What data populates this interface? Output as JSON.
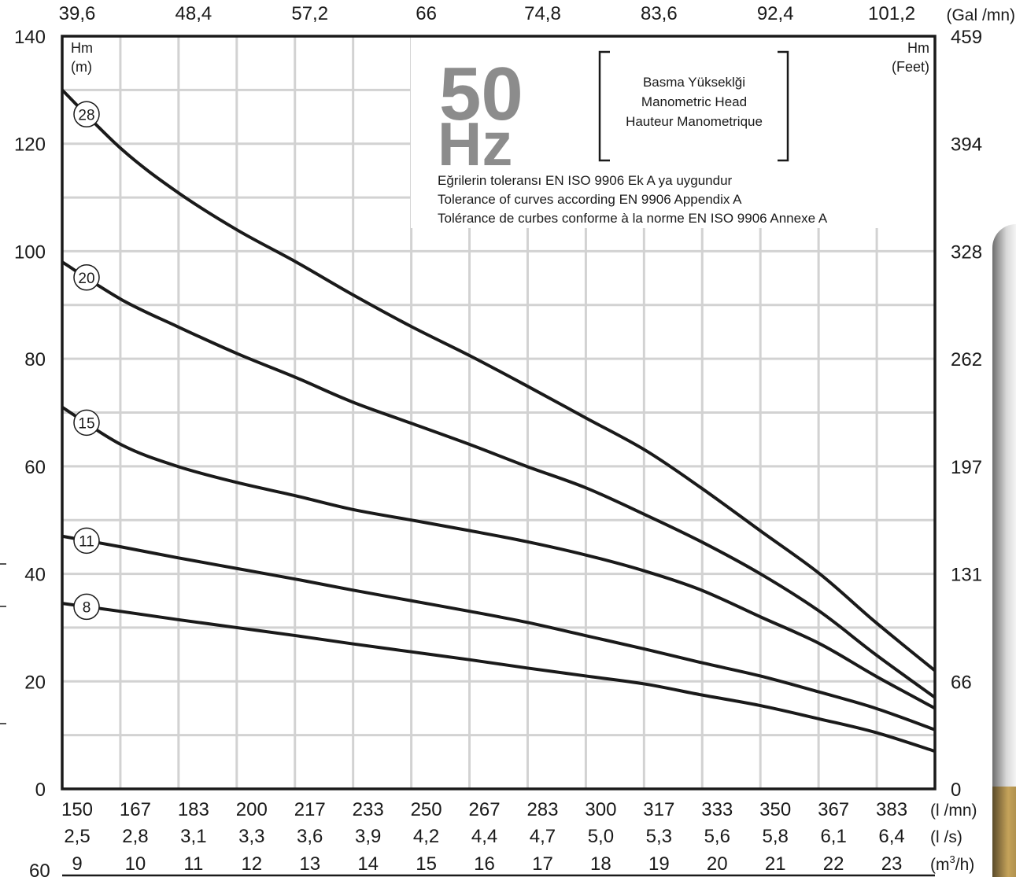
{
  "chart_data": {
    "type": "line",
    "title": "50 Hz",
    "title_line1": "50",
    "title_line2": "Hz",
    "y_left_label_top": "Hm",
    "y_left_label_unit": "(m)",
    "y_right_label_top": "Hm",
    "y_right_label_unit": "(Feet)",
    "ylim": [
      0,
      140
    ],
    "xlim": [
      150,
      400
    ],
    "x_unit_lmn": "(l /mn)",
    "x_unit_ls": "(l /s)",
    "x_unit_m3h_prefix": "(m",
    "x_unit_m3h_sup": "3",
    "x_unit_m3h_suffix": "/h)",
    "top_unit": "(Gal /mn)",
    "y_left_ticks": [
      "0",
      "20",
      "40",
      "60",
      "80",
      "100",
      "120",
      "140"
    ],
    "y_right_ticks": [
      "0",
      "66",
      "131",
      "197",
      "262",
      "328",
      "394",
      "459"
    ],
    "x_ticks_lmn": [
      "150",
      "167",
      "183",
      "200",
      "217",
      "233",
      "250",
      "267",
      "283",
      "300",
      "317",
      "333",
      "350",
      "367",
      "383"
    ],
    "x_ticks_ls": [
      "2,5",
      "2,8",
      "3,1",
      "3,3",
      "3,6",
      "3,9",
      "4,2",
      "4,4",
      "4,7",
      "5,0",
      "5,3",
      "5,6",
      "5,8",
      "6,1",
      "6,4"
    ],
    "x_ticks_m3h": [
      "9",
      "10",
      "11",
      "12",
      "13",
      "14",
      "15",
      "16",
      "17",
      "18",
      "19",
      "20",
      "21",
      "22",
      "23"
    ],
    "x_ticks_gal": [
      "39,6",
      "48,4",
      "57,2",
      "66",
      "74,8",
      "83,6",
      "92,4",
      "101,2"
    ],
    "stray_label": "60",
    "box_text": [
      "Basma Yükseklği",
      "Manometric Head",
      "Hauteur Manometrique"
    ],
    "tolerance_notes": [
      "Eğrilerin toleransı EN ISO 9906 Ek A ya uygundur",
      "Tolerance of curves according EN 9906 Appendix A",
      "Tolérance de curbes conforme à la norme EN ISO 9906 Annexe A"
    ],
    "series": [
      {
        "name": "28",
        "x": [
          150,
          167,
          183,
          200,
          217,
          233,
          250,
          267,
          283,
          300,
          317,
          333,
          350,
          367,
          383,
          400
        ],
        "y": [
          130,
          119,
          111,
          104,
          98,
          92,
          86,
          80.5,
          75,
          69,
          63,
          56,
          48,
          40,
          31,
          22
        ]
      },
      {
        "name": "20",
        "x": [
          150,
          167,
          183,
          200,
          217,
          233,
          250,
          267,
          283,
          300,
          317,
          333,
          350,
          367,
          383,
          400
        ],
        "y": [
          98,
          91,
          86,
          81,
          76.5,
          72,
          68,
          64,
          60,
          56,
          51,
          46,
          40,
          33,
          25,
          17
        ]
      },
      {
        "name": "15",
        "x": [
          150,
          167,
          183,
          200,
          217,
          233,
          250,
          267,
          283,
          300,
          317,
          333,
          350,
          367,
          383,
          400
        ],
        "y": [
          71,
          64,
          60,
          57,
          54.5,
          52,
          50,
          48,
          46,
          43.5,
          40.5,
          37,
          32,
          27,
          21,
          15
        ]
      },
      {
        "name": "11",
        "x": [
          150,
          167,
          183,
          200,
          217,
          233,
          250,
          267,
          283,
          300,
          317,
          333,
          350,
          367,
          383,
          400
        ],
        "y": [
          47,
          45,
          43,
          41,
          39,
          37,
          35,
          33,
          31,
          28.5,
          26,
          23.5,
          21,
          18,
          15,
          11
        ]
      },
      {
        "name": "8",
        "x": [
          150,
          167,
          183,
          200,
          217,
          233,
          250,
          267,
          283,
          300,
          317,
          333,
          350,
          367,
          383,
          400
        ],
        "y": [
          34.5,
          33,
          31.5,
          30,
          28.5,
          27,
          25.5,
          24,
          22.5,
          21,
          19.5,
          17.5,
          15.5,
          13,
          10.5,
          7
        ]
      }
    ]
  }
}
